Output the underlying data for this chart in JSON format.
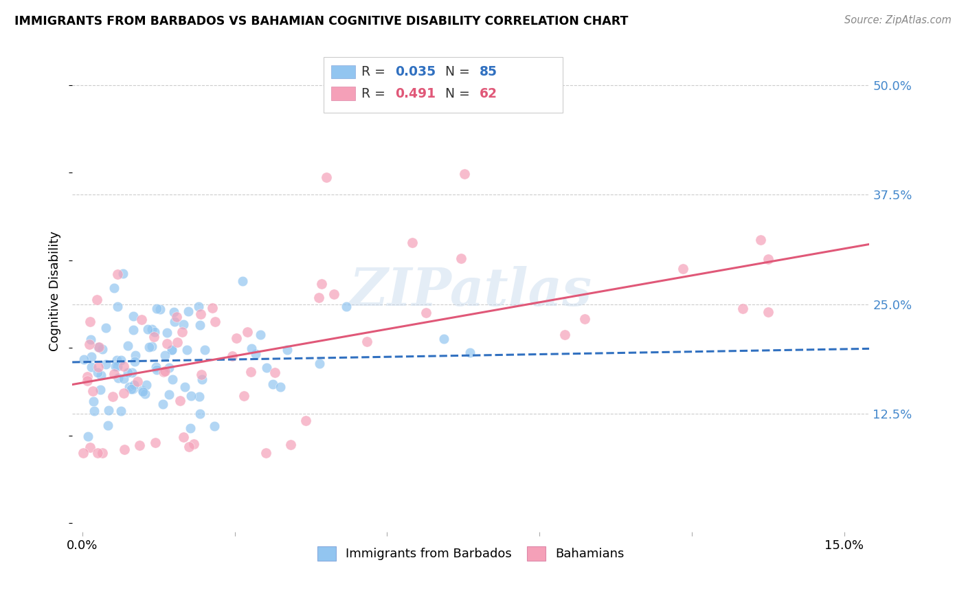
{
  "title": "IMMIGRANTS FROM BARBADOS VS BAHAMIAN COGNITIVE DISABILITY CORRELATION CHART",
  "source": "Source: ZipAtlas.com",
  "ylabel": "Cognitive Disability",
  "ytick_labels": [
    "12.5%",
    "25.0%",
    "37.5%",
    "50.0%"
  ],
  "ytick_values": [
    0.125,
    0.25,
    0.375,
    0.5
  ],
  "xtick_values": [
    0.0,
    0.03,
    0.06,
    0.09,
    0.12,
    0.15
  ],
  "xlim": [
    -0.002,
    0.155
  ],
  "ylim": [
    -0.01,
    0.54
  ],
  "watermark": "ZIPatlas",
  "series1_color": "#92c5f0",
  "series2_color": "#f5a0b8",
  "series1_line_color": "#3070c0",
  "series2_line_color": "#e05878",
  "series1_R": 0.035,
  "series1_N": 85,
  "series2_R": 0.491,
  "series2_N": 62,
  "background_color": "#ffffff",
  "grid_color": "#cccccc",
  "ytick_color": "#4488cc",
  "legend1_R": "0.035",
  "legend1_N": "85",
  "legend2_R": "0.491",
  "legend2_N": "62"
}
